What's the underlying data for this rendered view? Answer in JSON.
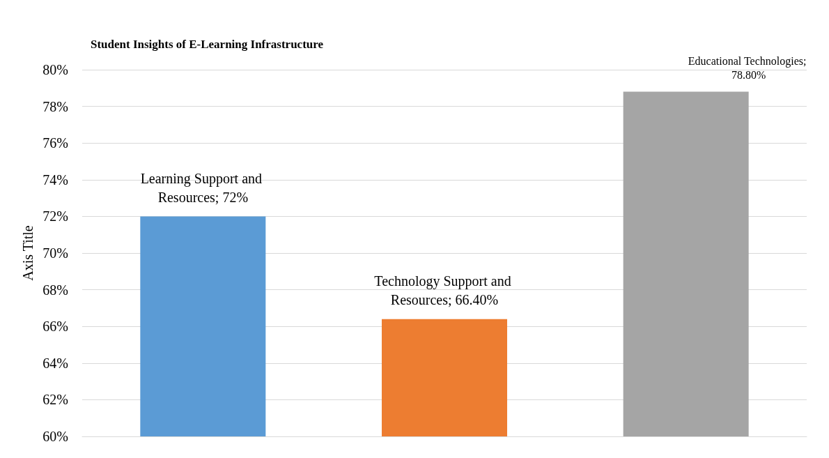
{
  "chart_data": {
    "type": "bar",
    "title": "Student Insights of E-Learning Infrastructure",
    "ylabel": "Axis Title",
    "categories": [
      null,
      null,
      null
    ],
    "values": [
      72,
      66.4,
      78.8
    ],
    "colors": [
      "#5b9bd5",
      "#ed7d31",
      "#a5a5a5"
    ],
    "value_labels": [
      "Learning Support and Resources; 72%",
      "Technology Support and Resources; 66.40%",
      "Educational Technologies; 78.80%"
    ],
    "ylim": [
      60,
      80
    ],
    "yticks": [
      {
        "value": 60,
        "label": "60%"
      },
      {
        "value": 62,
        "label": "62%"
      },
      {
        "value": 64,
        "label": "64%"
      },
      {
        "value": 66,
        "label": "66%"
      },
      {
        "value": 68,
        "label": "68%"
      },
      {
        "value": 70,
        "label": "70%"
      },
      {
        "value": 72,
        "label": "72%"
      },
      {
        "value": 74,
        "label": "74%"
      },
      {
        "value": 76,
        "label": "76%"
      },
      {
        "value": 78,
        "label": "78%"
      },
      {
        "value": 80,
        "label": "80%"
      }
    ],
    "grid": "y"
  }
}
